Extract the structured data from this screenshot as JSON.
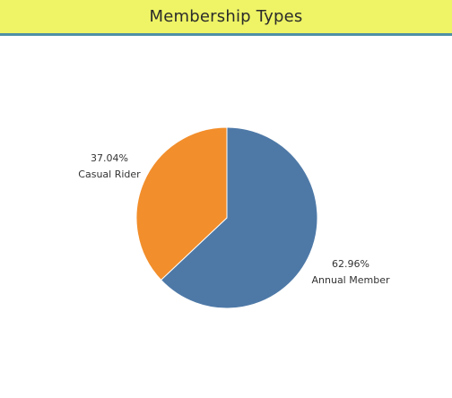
{
  "header": {
    "title": "Membership Types"
  },
  "colors": {
    "title_bar": "#eef465",
    "title_underline": "#4f8fa6"
  },
  "chart_data": {
    "type": "pie",
    "title": "Membership Types",
    "slices": [
      {
        "label": "Annual Member",
        "percent": 62.96,
        "percent_text": "62.96%",
        "color": "#4e79a7"
      },
      {
        "label": "Casual Rider",
        "percent": 37.04,
        "percent_text": "37.04%",
        "color": "#f28e2b"
      }
    ],
    "start": "12 o'clock",
    "direction": "clockwise"
  }
}
